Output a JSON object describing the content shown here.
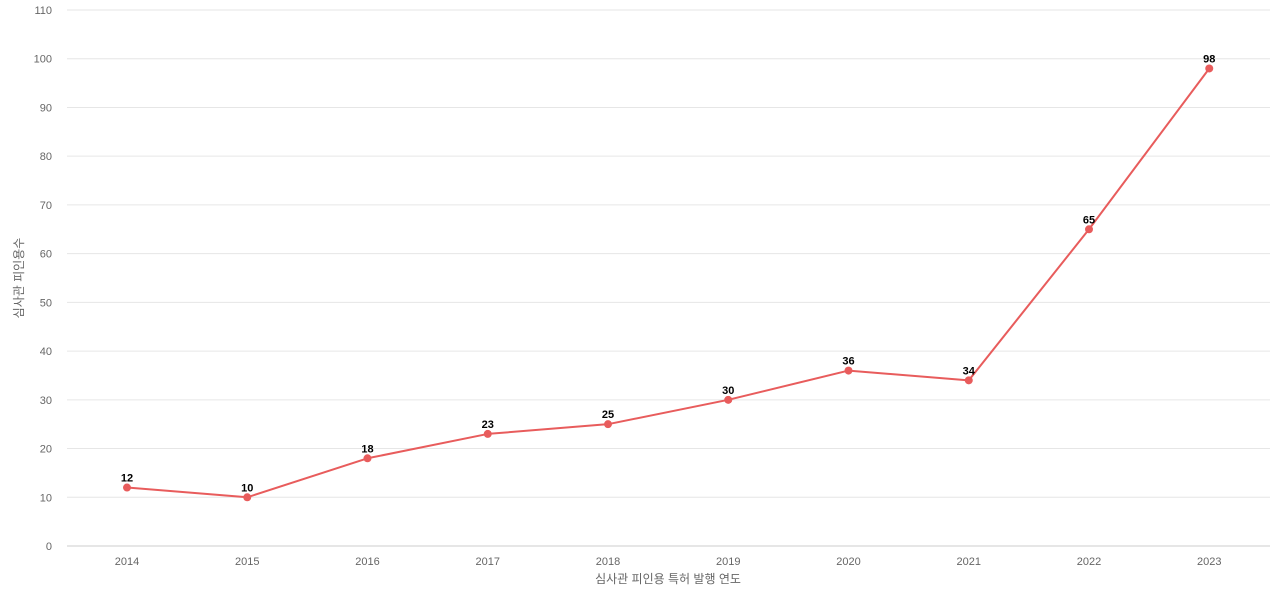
{
  "chart_data": {
    "type": "line",
    "title": "",
    "xlabel": "심사관 피인용 특허 발행 연도",
    "ylabel": "심사관 피인용수",
    "x": [
      "2014",
      "2015",
      "2016",
      "2017",
      "2018",
      "2019",
      "2020",
      "2021",
      "2022",
      "2023"
    ],
    "series": [
      {
        "values": [
          12,
          10,
          18,
          23,
          25,
          30,
          36,
          34,
          65,
          98
        ],
        "color": "#e85c5c"
      }
    ],
    "ylim": [
      0,
      110
    ],
    "yticks": [
      0,
      10,
      20,
      30,
      40,
      50,
      60,
      70,
      80,
      90,
      100,
      110
    ],
    "grid": true,
    "legend": "none",
    "data_labels": true
  }
}
